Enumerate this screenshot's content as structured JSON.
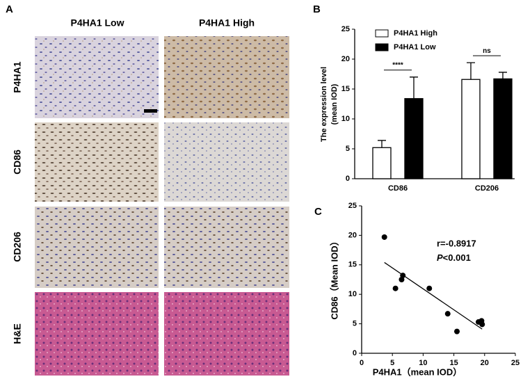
{
  "panel_a": {
    "label": "A",
    "columns": [
      "P4HA1 Low",
      "P4HA1 High"
    ],
    "rows": [
      "P4HA1",
      "CD86",
      "CD206",
      "H&E"
    ]
  },
  "chart_data": [
    {
      "type": "bar",
      "label": "B",
      "ylabel": [
        "The expression level",
        "(mean IOD)"
      ],
      "categories": [
        "CD86",
        "CD206"
      ],
      "series": [
        {
          "name": "P4HA1 High",
          "color": "#ffffff",
          "values": [
            5.2,
            16.6
          ],
          "errors": [
            1.2,
            2.8
          ]
        },
        {
          "name": "P4HA1 Low",
          "color": "#000000",
          "values": [
            13.4,
            16.7
          ],
          "errors": [
            3.6,
            1.1
          ]
        }
      ],
      "annotations": [
        "****",
        "ns"
      ],
      "ylim": [
        0,
        25
      ],
      "yticks": [
        0,
        5,
        10,
        15,
        20,
        25
      ]
    },
    {
      "type": "scatter",
      "label": "C",
      "xlabel": "P4HA1（mean IOD）",
      "ylabel": "CD86（Mean IOD）",
      "x": [
        3.7,
        5.5,
        6.5,
        6.7,
        11,
        14,
        15.5,
        19,
        19.5,
        19.6
      ],
      "values": [
        19.7,
        11,
        12.5,
        13.2,
        11,
        6.7,
        3.7,
        5.3,
        5.5,
        4.9
      ],
      "color": "#000000",
      "fit_line": {
        "x": [
          3.7,
          19.6
        ],
        "y": [
          15.4,
          4.1
        ]
      },
      "stat_r": "r=-0.8917",
      "stat_p": {
        "italic": "P",
        "rest": "<0.001"
      },
      "xlim": [
        0,
        25
      ],
      "xticks": [
        0,
        5,
        10,
        15,
        20,
        25
      ],
      "ylim": [
        0,
        25
      ],
      "yticks": [
        0,
        5,
        10,
        15,
        20,
        25
      ]
    }
  ]
}
